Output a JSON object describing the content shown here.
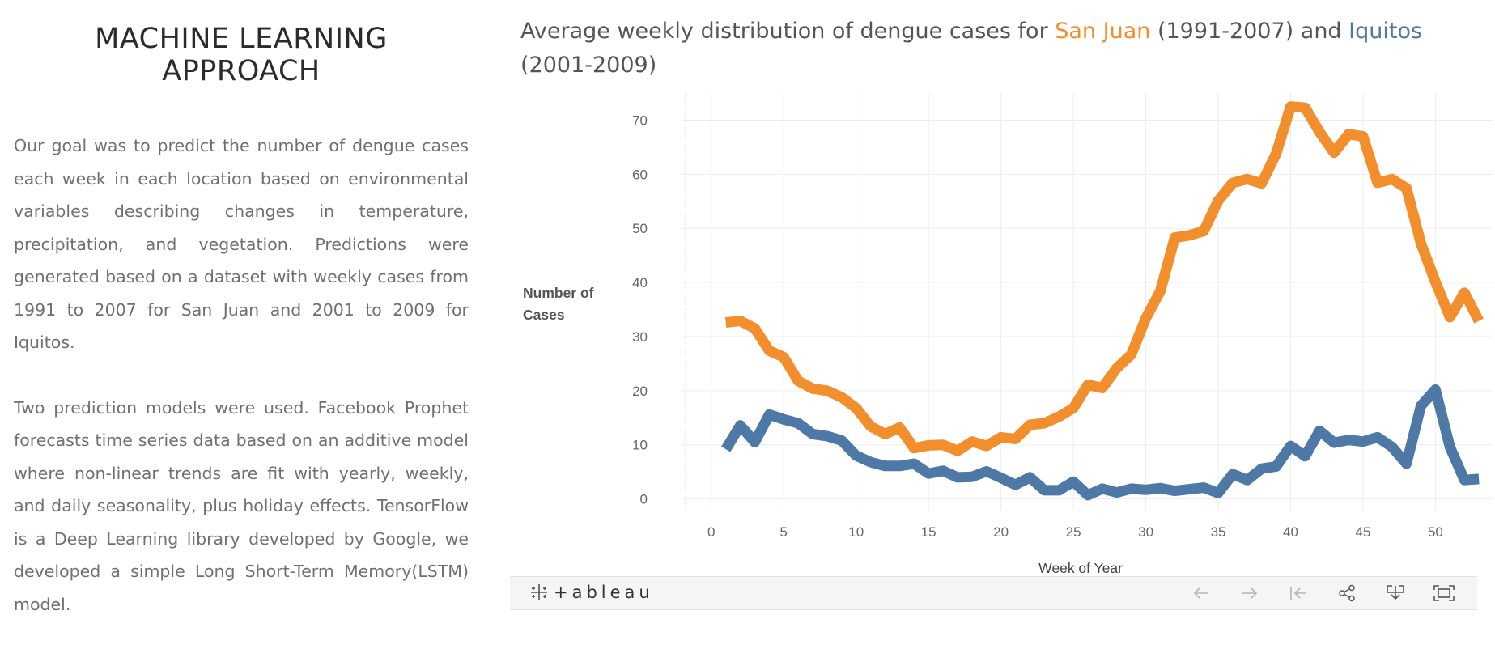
{
  "article": {
    "title_line1": "MACHINE LEARNING",
    "title_line2": "APPROACH",
    "paragraph1": "Our goal was to predict the number of dengue cases each week in each location based on environmental variables describing changes in temperature, precipitation, and vegetation. Predictions were generated based on a dataset with weekly cases from 1991 to 2007 for San Juan and 2001 to 2009 for Iquitos.",
    "paragraph2": "Two prediction models were used. Facebook Prophet forecasts time series data based on an additive model where non-linear trends are fit with yearly, weekly, and daily seasonality, plus holiday effects. TensorFlow is a Deep Learning library developed by Google, we developed a simple Long Short-Term Memory(LSTM) model."
  },
  "viz": {
    "title_prefix": "Average weekly distribution of dengue cases for ",
    "title_city1": "San Juan",
    "title_middle": " (1991-2007) and ",
    "title_city2": "Iquitos",
    "title_suffix": " (2001-2009)",
    "colors": {
      "san_juan": "#f28e2b",
      "iquitos": "#4e79a7"
    }
  },
  "chart_data": {
    "type": "line",
    "title": "Average weekly distribution of dengue cases for San Juan (1991-2007) and Iquitos (2001-2009)",
    "xlabel": "Week of Year",
    "ylabel": "Number of Cases",
    "xlim": [
      -2,
      54
    ],
    "ylim": [
      -2,
      75
    ],
    "xticks": [
      0,
      5,
      10,
      15,
      20,
      25,
      30,
      35,
      40,
      45,
      50
    ],
    "yticks": [
      0,
      10,
      20,
      30,
      40,
      50,
      60,
      70
    ],
    "grid": true,
    "legend": "none",
    "x": [
      1,
      2,
      3,
      4,
      5,
      6,
      7,
      8,
      9,
      10,
      11,
      12,
      13,
      14,
      15,
      16,
      17,
      18,
      19,
      20,
      21,
      22,
      23,
      24,
      25,
      26,
      27,
      28,
      29,
      30,
      31,
      32,
      33,
      34,
      35,
      36,
      37,
      38,
      39,
      40,
      41,
      42,
      43,
      44,
      45,
      46,
      47,
      48,
      49,
      50,
      51,
      52,
      53
    ],
    "series": [
      {
        "name": "San Juan",
        "color": "#f28e2b",
        "values": [
          32.6,
          32.9,
          31.5,
          27.4,
          26.2,
          21.8,
          20.4,
          20.0,
          18.8,
          16.8,
          13.4,
          12.0,
          13.2,
          9.4,
          9.9,
          10.0,
          8.9,
          10.6,
          9.8,
          11.4,
          11.1,
          13.7,
          14.0,
          15.2,
          16.8,
          21.1,
          20.5,
          24.2,
          26.7,
          33.4,
          38.4,
          48.3,
          48.7,
          49.5,
          55.1,
          58.4,
          59.1,
          58.3,
          63.8,
          72.5,
          72.3,
          67.8,
          64.0,
          67.4,
          67.0,
          58.4,
          59.1,
          57.4,
          47.2,
          40.1,
          33.6,
          38.1,
          32.9
        ]
      },
      {
        "name": "Iquitos",
        "color": "#4e79a7",
        "values": [
          9.2,
          13.6,
          10.5,
          15.6,
          14.7,
          14.0,
          12.0,
          11.6,
          10.8,
          8.0,
          6.8,
          6.1,
          6.1,
          6.5,
          4.7,
          5.2,
          4.0,
          4.1,
          5.1,
          3.9,
          2.6,
          4.0,
          1.6,
          1.6,
          3.2,
          0.7,
          1.9,
          1.2,
          1.9,
          1.7,
          2.0,
          1.5,
          1.8,
          2.1,
          1.1,
          4.6,
          3.5,
          5.6,
          6.0,
          9.8,
          7.9,
          12.6,
          10.4,
          10.9,
          10.6,
          11.4,
          9.6,
          6.5,
          17.2,
          20.2,
          9.6,
          3.5,
          3.7
        ]
      }
    ]
  },
  "toolbar": {
    "logo_text": "+ableau"
  }
}
